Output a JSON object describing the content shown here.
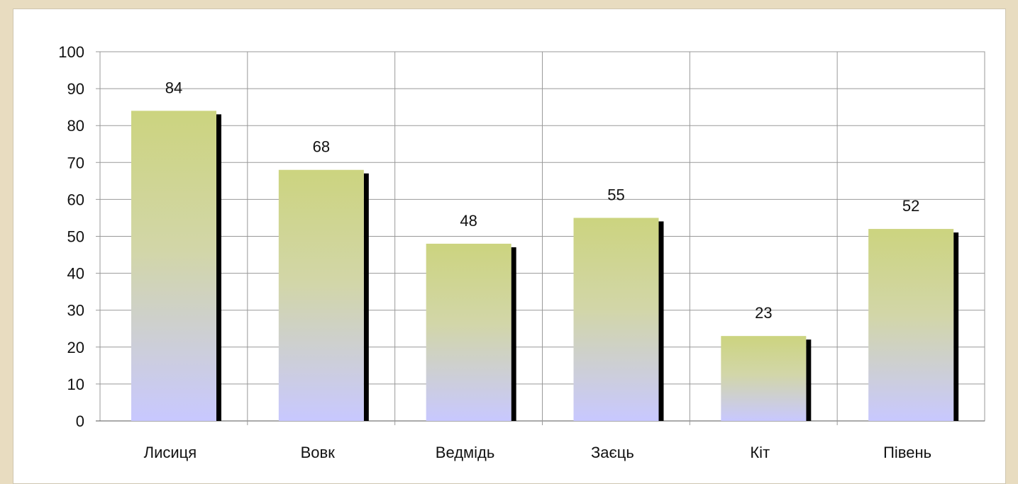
{
  "chart_data": {
    "type": "bar",
    "categories": [
      "Лисиця",
      "Вовк",
      "Ведмідь",
      "Заєць",
      "Кіт",
      "Півень"
    ],
    "values": [
      84,
      68,
      48,
      55,
      23,
      52
    ],
    "data_labels": [
      "84",
      "68",
      "48",
      "55",
      "23",
      "52"
    ],
    "title": "",
    "xlabel": "",
    "ylabel": "",
    "ylim": [
      0,
      100
    ],
    "yticks": [
      0,
      10,
      20,
      30,
      40,
      50,
      60,
      70,
      80,
      90,
      100
    ],
    "ytick_labels": [
      "0",
      "10",
      "20",
      "30",
      "40",
      "50",
      "60",
      "70",
      "80",
      "90",
      "100"
    ],
    "grid": true,
    "legend": "none",
    "colors": {
      "bar_top": "#ccd47f",
      "bar_bottom": "#c8c8ff",
      "shadow": "#000000",
      "grid": "#999999",
      "axis": "#555555"
    }
  }
}
